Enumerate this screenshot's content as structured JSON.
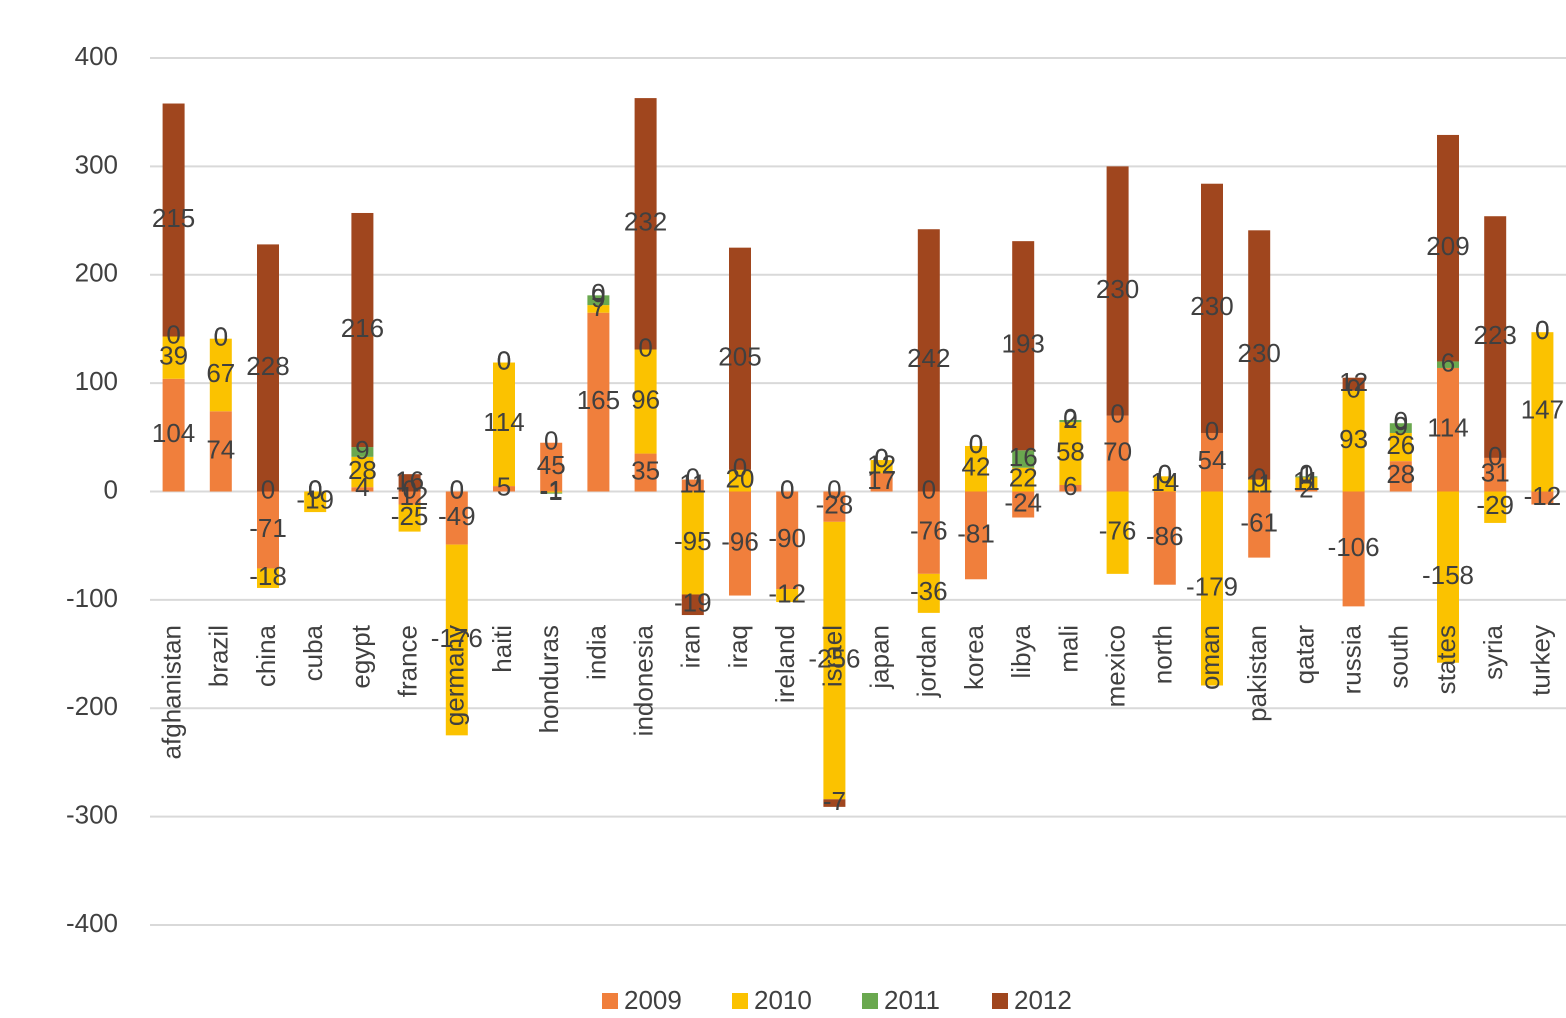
{
  "chart_data": {
    "type": "stacked_bar",
    "categories": [
      "afghanistan",
      "brazil",
      "china",
      "cuba",
      "egypt",
      "france",
      "germany",
      "haiti",
      "honduras",
      "india",
      "indonesia",
      "iran",
      "iraq",
      "ireland",
      "israel",
      "japan",
      "jordan",
      "korea",
      "libya",
      "mali",
      "mexico",
      "north",
      "oman",
      "pakistan",
      "qatar",
      "russia",
      "south",
      "states",
      "syria",
      "turkey"
    ],
    "series": [
      {
        "name": "2009",
        "color": "#f07f3c",
        "values": [
          104,
          74,
          -71,
          0,
          4,
          -12,
          -49,
          5,
          45,
          165,
          35,
          11,
          -96,
          -90,
          -28,
          17,
          -76,
          -81,
          -24,
          6,
          70,
          -86,
          54,
          -61,
          2,
          -106,
          28,
          114,
          31,
          -12
        ]
      },
      {
        "name": "2010",
        "color": "#fbc200",
        "values": [
          39,
          67,
          -18,
          -19,
          28,
          -25,
          -176,
          114,
          -1,
          7,
          96,
          -95,
          20,
          -12,
          -256,
          12,
          -36,
          42,
          22,
          58,
          -76,
          14,
          -179,
          11,
          11,
          93,
          26,
          -158,
          -29,
          147
        ]
      },
      {
        "name": "2011",
        "color": "#6aa84f",
        "values": [
          0,
          0,
          0,
          0,
          9,
          0,
          0,
          0,
          -1,
          9,
          0,
          0,
          0,
          0,
          0,
          0,
          0,
          0,
          16,
          2,
          0,
          0,
          0,
          0,
          1,
          0,
          9,
          6,
          0,
          0
        ]
      },
      {
        "name": "2012",
        "color": "#a0461e",
        "values": [
          215,
          0,
          228,
          0,
          216,
          16,
          0,
          0,
          0,
          0,
          232,
          -19,
          205,
          0,
          -7,
          0,
          242,
          0,
          193,
          0,
          230,
          0,
          230,
          230,
          0,
          12,
          0,
          209,
          223,
          0
        ]
      }
    ],
    "ylim": [
      -400,
      400
    ],
    "yticks": [
      -400,
      -300,
      -200,
      -100,
      0,
      100,
      200,
      300,
      400
    ],
    "grid": true,
    "legend": "bottom"
  }
}
